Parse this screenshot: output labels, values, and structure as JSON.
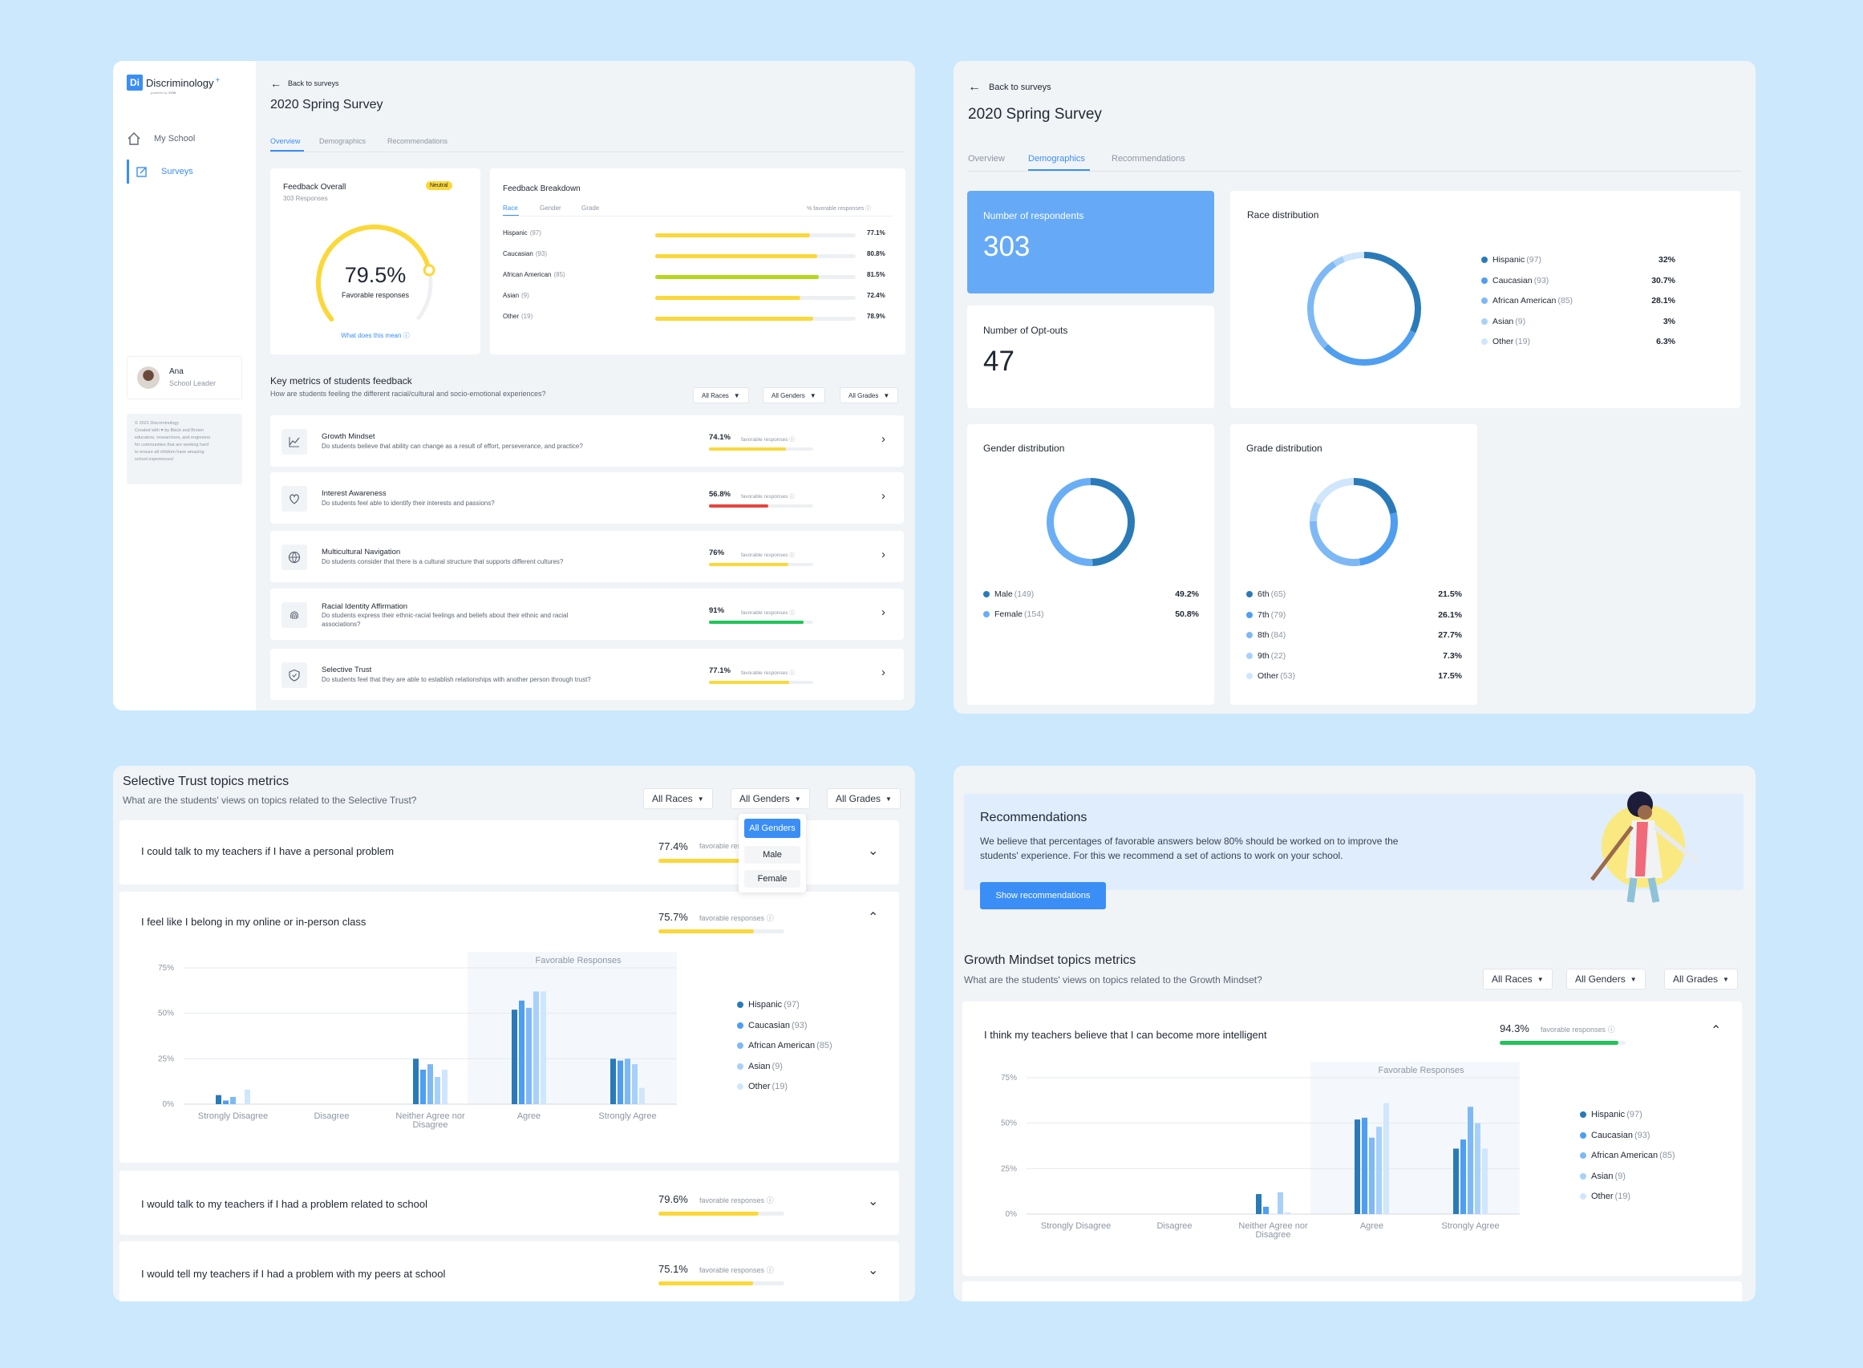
{
  "p1": {
    "brand": "Discriminology",
    "brand_tag": "powered by",
    "brand_sub": "VOW",
    "nav": [
      "My School",
      "Surveys"
    ],
    "user": {
      "name": "Ana",
      "role": "School Leader"
    },
    "footer": [
      "© 2021 Discriminology",
      "Created with ♥ by Black and Brown",
      "educators, researchers, and engineers",
      "for communities that are working hard",
      "to ensure all children have amazing",
      "school experiences!"
    ],
    "back": "Back to surveys",
    "title": "2020 Spring Survey",
    "tabs": [
      "Overview",
      "Demographics",
      "Recommendations"
    ],
    "overall": {
      "title": "Feedback Overall",
      "responses": "303 Responses",
      "badge": "Neutral",
      "value": "79.5%",
      "label": "Favorable responses",
      "fraction": 0.795,
      "link": "What does this mean"
    },
    "breakdown": {
      "title": "Feedback Breakdown",
      "tabs": [
        "Race",
        "Gender",
        "Grade"
      ],
      "note": "% favorable responses",
      "rows": [
        {
          "name": "Hispanic",
          "n": "(97)",
          "pct": "77.1%",
          "v": 77.1
        },
        {
          "name": "Caucasian",
          "n": "(93)",
          "pct": "80.8%",
          "v": 80.8
        },
        {
          "name": "African American",
          "n": "(85)",
          "pct": "81.5%",
          "v": 81.5
        },
        {
          "name": "Asian",
          "n": "(9)",
          "pct": "72.4%",
          "v": 72.4
        },
        {
          "name": "Other",
          "n": "(19)",
          "pct": "78.9%",
          "v": 78.9
        }
      ]
    },
    "km": {
      "title": "Key metrics of students feedback",
      "sub": "How are students feeling the different racial/cultural and socio-emotional experiences?",
      "filters": [
        "All Races",
        "All Genders",
        "All Grades"
      ],
      "fav": "favorable responses",
      "items": [
        {
          "icon": "chart-icon",
          "title": "Growth Mindset",
          "desc": "Do students believe that ability can change as a result of effort, perseverance, and practice?",
          "pct": "74.1%",
          "v": 74.1,
          "color": "#fbd83a"
        },
        {
          "icon": "heart-icon",
          "title": "Interest Awareness",
          "desc": "Do students feel able to identify their interests and passions?",
          "pct": "56.8%",
          "v": 56.8,
          "color": "#e4463e"
        },
        {
          "icon": "globe-icon",
          "title": "Multicultural Navigation",
          "desc": "Do students consider that there is a cultural structure that supports different cultures?",
          "pct": "76%",
          "v": 76,
          "color": "#fbd83a"
        },
        {
          "icon": "fingerprint-icon",
          "title": "Racial Identity Affirmation",
          "desc": "Do students express their ethnic-racial feelings and beliefs about their ethnic and racial",
          "desc2": "associations?",
          "pct": "91%",
          "v": 91,
          "color": "#21c45a"
        },
        {
          "icon": "shield-icon",
          "title": "Selective Trust",
          "desc": "Do students feel that they are able to establish relationships with another person through trust?",
          "pct": "77.1%",
          "v": 77.1,
          "color": "#fbd83a"
        }
      ]
    }
  },
  "p2": {
    "back": "Back to surveys",
    "title": "2020 Spring Survey",
    "tabs": [
      "Overview",
      "Demographics",
      "Recommendations"
    ],
    "respondents": {
      "label": "Number of respondents",
      "value": "303"
    },
    "optouts": {
      "label": "Number of Opt-outs",
      "value": "47"
    },
    "race": {
      "title": "Race distribution",
      "items": [
        {
          "name": "Hispanic",
          "n": "(97)",
          "pct": "32%",
          "v": 32,
          "color": "#2a7ab8"
        },
        {
          "name": "Caucasian",
          "n": "(93)",
          "pct": "30.7%",
          "v": 30.7,
          "color": "#4f9ef0"
        },
        {
          "name": "African American",
          "n": "(85)",
          "pct": "28.1%",
          "v": 28.1,
          "color": "#7fb9f5"
        },
        {
          "name": "Asian",
          "n": "(9)",
          "pct": "3%",
          "v": 3,
          "color": "#a8d1fa"
        },
        {
          "name": "Other",
          "n": "(19)",
          "pct": "6.3%",
          "v": 6.3,
          "color": "#cfe6fd"
        }
      ]
    },
    "gender": {
      "title": "Gender distribution",
      "items": [
        {
          "name": "Male",
          "n": "(149)",
          "pct": "49.2%",
          "v": 49.2,
          "color": "#2a7ab8"
        },
        {
          "name": "Female",
          "n": "(154)",
          "pct": "50.8%",
          "v": 50.8,
          "color": "#6aaef5"
        }
      ]
    },
    "grade": {
      "title": "Grade distribution",
      "items": [
        {
          "name": "6th",
          "n": "(65)",
          "pct": "21.5%",
          "v": 21.5,
          "color": "#2a7ab8"
        },
        {
          "name": "7th",
          "n": "(79)",
          "pct": "26.1%",
          "v": 26.1,
          "color": "#4f9ef0"
        },
        {
          "name": "8th",
          "n": "(84)",
          "pct": "27.7%",
          "v": 27.7,
          "color": "#7fb9f5"
        },
        {
          "name": "9th",
          "n": "(22)",
          "pct": "7.3%",
          "v": 7.3,
          "color": "#a8d1fa"
        },
        {
          "name": "Other",
          "n": "(53)",
          "pct": "17.5%",
          "v": 17.5,
          "color": "#cfe6fd"
        }
      ]
    }
  },
  "p3": {
    "title": "Selective Trust topics metrics",
    "sub": "What are the students' views on topics related to the Selective Trust?",
    "filters": [
      "All Races",
      "All Genders",
      "All Grades"
    ],
    "dropdown": [
      "All Genders",
      "Male",
      "Female"
    ],
    "fav": "favorable responses",
    "q": [
      {
        "text": "I could talk to my teachers if I have a personal problem",
        "pct": "77.4%",
        "v": 77.4
      },
      {
        "text": "I feel like I belong in my online or in-person class",
        "pct": "75.7%",
        "v": 75.7
      },
      {
        "text": "I would talk to my teachers if I had a problem related to school",
        "pct": "79.6%",
        "v": 79.6
      },
      {
        "text": "I would tell my teachers if I had a problem with my peers at school",
        "pct": "75.1%",
        "v": 75.1
      }
    ]
  },
  "p4": {
    "rec_title": "Recommendations",
    "rec_text1": "We believe that percentages of favorable answers below 80% should be worked on to improve the",
    "rec_text2": "students' experience. For this we recommend a set of actions to work on your school.",
    "rec_btn": "Show recommendations",
    "title": "Growth Mindset topics metrics",
    "sub": "What are the students' views on topics related to the Growth Mindset?",
    "filters": [
      "All Races",
      "All Genders",
      "All Grades"
    ],
    "fav": "favorable responses",
    "q": {
      "text": "I think my teachers believe that I can become more intelligent",
      "pct": "94.3%",
      "v": 94.3
    }
  },
  "chart_data": [
    {
      "type": "bar",
      "title": "",
      "highlight_label": "Favorable Responses",
      "categories": [
        "Strongly Disagree",
        "Disagree",
        "Neither Agree nor Disagree",
        "Agree",
        "Strongly Agree"
      ],
      "ylim": [
        0,
        75
      ],
      "yticks": [
        "0%",
        "25%",
        "50%",
        "75%"
      ],
      "series": [
        {
          "name": "Hispanic",
          "n": "(97)",
          "color": "#2a7ab8",
          "values": [
            5,
            0,
            25,
            52,
            25
          ]
        },
        {
          "name": "Caucasian",
          "n": "(93)",
          "color": "#4f9ef0",
          "values": [
            2,
            0,
            19,
            57,
            24
          ]
        },
        {
          "name": "African American",
          "n": "(85)",
          "color": "#7fb9f5",
          "values": [
            4,
            0,
            22,
            53,
            25
          ]
        },
        {
          "name": "Asian",
          "n": "(9)",
          "color": "#a8d1fa",
          "values": [
            0,
            0,
            15,
            62,
            22
          ]
        },
        {
          "name": "Other",
          "n": "(19)",
          "color": "#cfe6fd",
          "values": [
            8,
            0,
            19,
            62,
            9
          ]
        }
      ]
    },
    {
      "type": "bar",
      "title": "",
      "highlight_label": "Favorable Responses",
      "categories": [
        "Strongly Disagree",
        "Disagree",
        "Neither Agree nor Disagree",
        "Agree",
        "Strongly Agree"
      ],
      "ylim": [
        0,
        75
      ],
      "yticks": [
        "0%",
        "25%",
        "50%",
        "75%"
      ],
      "series": [
        {
          "name": "Hispanic",
          "n": "(97)",
          "color": "#2a7ab8",
          "values": [
            0,
            0,
            11,
            52,
            36
          ]
        },
        {
          "name": "Caucasian",
          "n": "(93)",
          "color": "#4f9ef0",
          "values": [
            0,
            0,
            4,
            53,
            41
          ]
        },
        {
          "name": "African American",
          "n": "(85)",
          "color": "#7fb9f5",
          "values": [
            0,
            0,
            0,
            42,
            59
          ]
        },
        {
          "name": "Asian",
          "n": "(9)",
          "color": "#a8d1fa",
          "values": [
            0,
            0,
            12,
            48,
            50
          ]
        },
        {
          "name": "Other",
          "n": "(19)",
          "color": "#cfe6fd",
          "values": [
            0,
            0,
            1,
            61,
            36
          ]
        }
      ]
    }
  ]
}
